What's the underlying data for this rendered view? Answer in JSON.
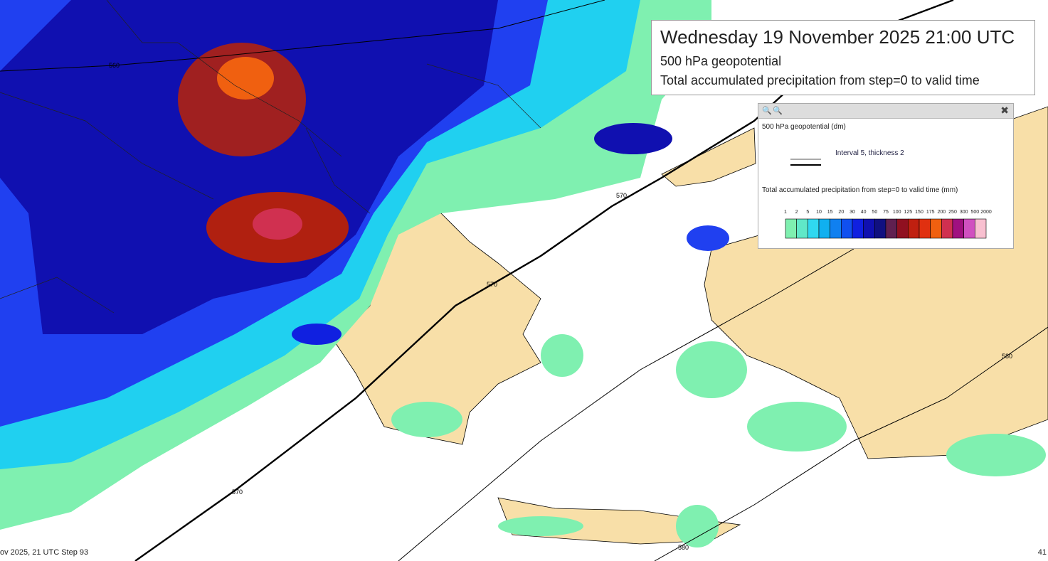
{
  "title": "Wednesday 19 November 2025 21:00 UTC",
  "subtitle": "500 hPa geopotential",
  "subtitle2": "Total accumulated precipitation from step=0 to valid time",
  "legend": {
    "heading": "500 hPa geopotential (dm)",
    "line_label": "Interval 5, thickness 2",
    "precip_heading": "Total accumulated precipitation from step=0 to valid time (mm)",
    "levels": [
      "1",
      "2",
      "5",
      "10",
      "15",
      "20",
      "30",
      "40",
      "50",
      "75",
      "100",
      "125",
      "150",
      "175",
      "200",
      "250",
      "300",
      "500",
      "2000"
    ],
    "colors": [
      "#7ff0b0",
      "#60e8c8",
      "#30d8f0",
      "#10b0f0",
      "#1080f0",
      "#1050f0",
      "#1020e0",
      "#1010b0",
      "#101080",
      "#602050",
      "#901020",
      "#c02010",
      "#e03010",
      "#f06010",
      "#d03050",
      "#a01080",
      "#d050c0",
      "#f8c0d0"
    ]
  },
  "contour_labels": [
    "560",
    "570",
    "570",
    "570",
    "580",
    "580"
  ],
  "footer": "ov 2025, 21 UTC Step 93",
  "footer_right": "41"
}
